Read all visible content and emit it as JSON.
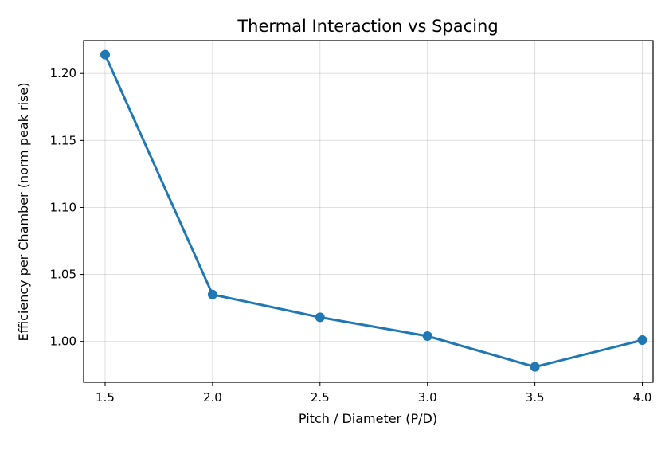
{
  "chart_data": {
    "type": "line",
    "title": "Thermal Interaction vs Spacing",
    "xlabel": "Pitch / Diameter (P/D)",
    "ylabel": "Efficiency per Chamber (norm peak rise)",
    "x": [
      1.5,
      2.0,
      2.5,
      3.0,
      3.5,
      4.0
    ],
    "series": [
      {
        "values": [
          1.214,
          1.035,
          1.018,
          1.004,
          0.981,
          1.001
        ]
      }
    ],
    "xlim": [
      1.4,
      4.05
    ],
    "ylim": [
      0.9695,
      1.2245
    ],
    "xticks": [
      "1.5",
      "2.0",
      "2.5",
      "3.0",
      "3.5",
      "4.0"
    ],
    "yticks": [
      "1.00",
      "1.05",
      "1.10",
      "1.15",
      "1.20"
    ],
    "grid": true,
    "legend": "none",
    "colors": {
      "line": "#1f77b4",
      "grid": "#b0b0b0",
      "axes": "#000000"
    },
    "marker": "circle"
  }
}
